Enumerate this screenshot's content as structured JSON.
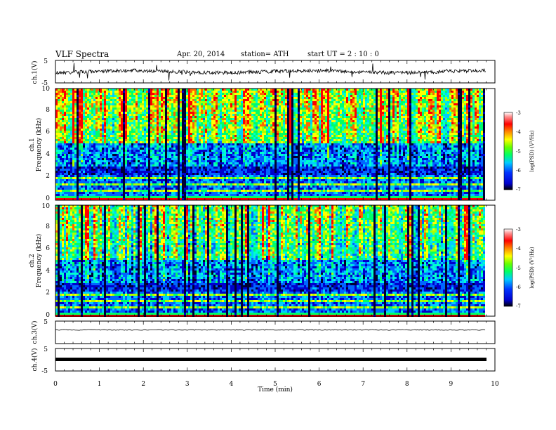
{
  "header": {
    "title": "VLF  Spectra",
    "date": "Apr. 20, 2014",
    "station": "station= ATH",
    "start": "start  UT  =   2  : 10 : 0"
  },
  "chart_data": [
    {
      "type": "line",
      "name": "ch1-voltage",
      "ylabel": "ch.1(V)",
      "ylim": [
        -5,
        5
      ],
      "yticks": [
        "5",
        "-5"
      ],
      "trace": "noisy-waveform",
      "baseline": 0
    },
    {
      "type": "heatmap",
      "name": "ch1-spectrogram",
      "ylabel": "ch.1\nFrequency  (kHz)",
      "ylim": [
        0,
        10
      ],
      "yticks": [
        "0",
        "2",
        "4",
        "6",
        "8",
        "10"
      ],
      "xlim": [
        0,
        9.8
      ],
      "colorbar": {
        "label": "log(PSD) (V²/Hz)",
        "range": [
          -7,
          -3
        ],
        "ticks": [
          "-3",
          "-4",
          "-5",
          "-6",
          "-7"
        ],
        "colors": [
          "#000000",
          "#0000cc",
          "#0033ff",
          "#00ccff",
          "#00ff66",
          "#66ff00",
          "#ffff00",
          "#ff8800",
          "#ff0000",
          "#ff9999",
          "#ffffff"
        ]
      }
    },
    {
      "type": "heatmap",
      "name": "ch2-spectrogram",
      "ylabel": "ch.2\nFrequency  (kHz)",
      "ylim": [
        0,
        10
      ],
      "yticks": [
        "0",
        "2",
        "4",
        "6",
        "8",
        "10"
      ],
      "xlim": [
        0,
        9.8
      ],
      "colorbar": {
        "label": "log(PSD) (V²/Hz)",
        "range": [
          -7,
          -3
        ],
        "ticks": [
          "-3",
          "-4",
          "-5",
          "-6",
          "-7"
        ]
      }
    },
    {
      "type": "line",
      "name": "ch3-voltage",
      "ylabel": "ch.3(V)",
      "ylim": [
        -5,
        5
      ],
      "yticks": [
        "5"
      ],
      "baseline": 0
    },
    {
      "type": "line",
      "name": "ch4-voltage",
      "ylabel": "ch.4(V)",
      "ylim": [
        -5,
        5
      ],
      "yticks": [
        "5",
        "-5"
      ],
      "baseline": 0
    }
  ],
  "xaxis": {
    "label": "Time  (min)",
    "xlim": [
      0,
      10
    ],
    "ticks": [
      "0",
      "1",
      "2",
      "3",
      "4",
      "5",
      "6",
      "7",
      "8",
      "9",
      "10"
    ]
  }
}
